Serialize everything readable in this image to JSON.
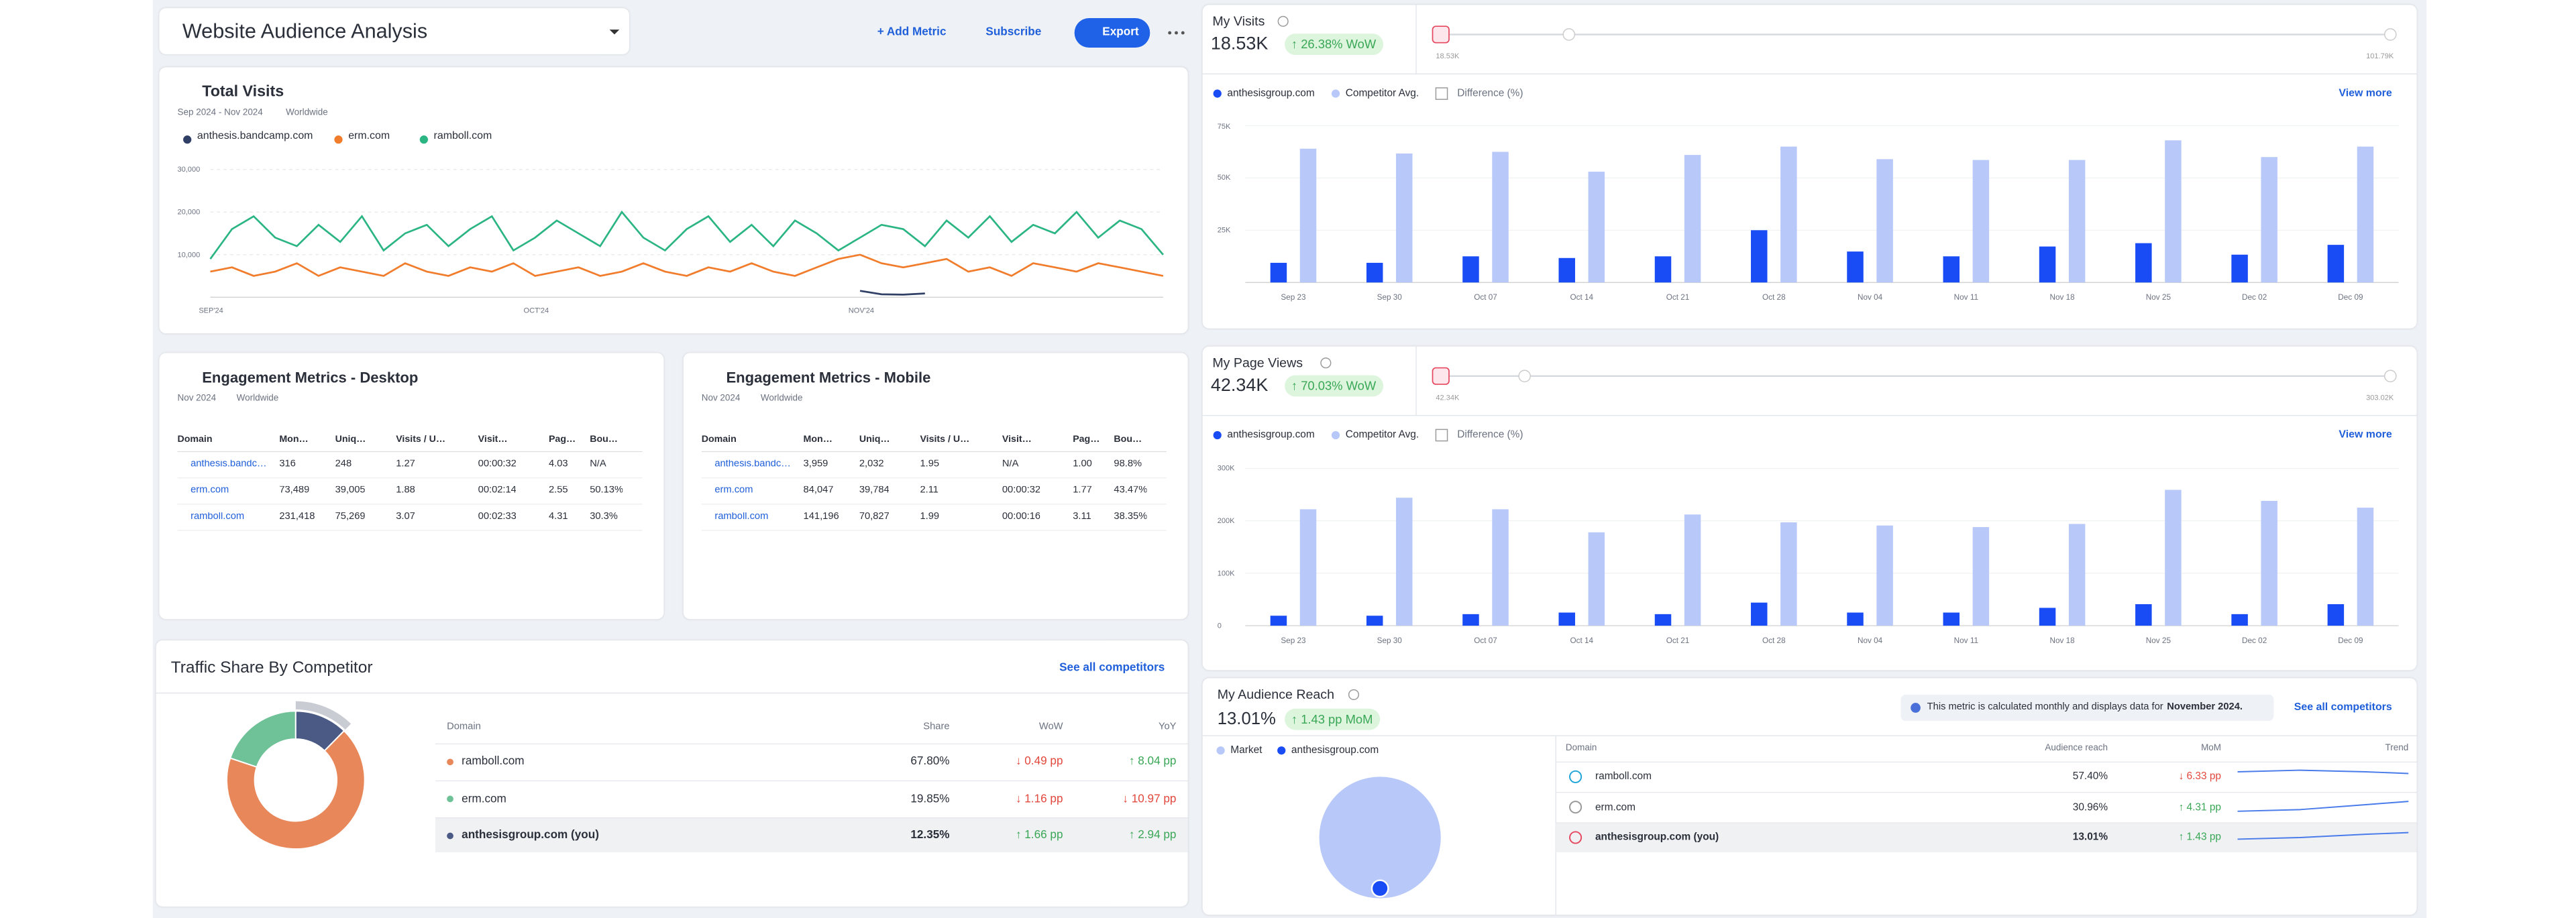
{
  "header": {
    "title": "Website Audience Analysis",
    "add_metric": "+ Add Metric",
    "subscribe": "Subscribe",
    "export": "Export"
  },
  "total_visits": {
    "title": "Total Visits",
    "period": "Sep 2024 - Nov 2024",
    "region": "Worldwide",
    "chart_data": {
      "type": "line",
      "categories": [
        "SEP'24",
        null,
        null,
        null,
        null,
        null,
        null,
        null,
        null,
        null,
        null,
        null,
        null,
        null,
        null,
        "OCT'24",
        null,
        null,
        null,
        null,
        null,
        null,
        null,
        null,
        null,
        null,
        null,
        null,
        null,
        null,
        "NOV'24",
        null,
        null,
        null,
        null,
        null,
        null,
        null,
        null,
        null,
        null,
        null,
        null,
        null,
        null
      ],
      "series": [
        {
          "name": "anthesis.bandcamp.com",
          "color": "#2f3f66",
          "values": [
            null,
            null,
            null,
            null,
            null,
            null,
            null,
            null,
            null,
            null,
            null,
            null,
            null,
            null,
            null,
            null,
            null,
            null,
            null,
            null,
            null,
            null,
            null,
            null,
            null,
            null,
            null,
            null,
            null,
            null,
            1500,
            700,
            600,
            900,
            null,
            null,
            null,
            null,
            null,
            null,
            null,
            null,
            null,
            null,
            null
          ]
        },
        {
          "name": "erm.com",
          "color": "#f07c2c",
          "values": [
            6000,
            7000,
            5000,
            6000,
            8000,
            5000,
            7000,
            6000,
            5000,
            8000,
            6000,
            5000,
            7000,
            6000,
            8000,
            5000,
            6000,
            7000,
            5000,
            6000,
            8000,
            6000,
            5000,
            7000,
            6000,
            8000,
            6000,
            5000,
            7000,
            9000,
            10000,
            8000,
            7000,
            8000,
            9000,
            6000,
            7000,
            5000,
            8000,
            7000,
            6000,
            8000,
            7000,
            6000,
            5000
          ]
        },
        {
          "name": "ramboll.com",
          "color": "#2bb583",
          "values": [
            9000,
            16000,
            19000,
            14000,
            12000,
            17000,
            13000,
            19000,
            11000,
            15000,
            17000,
            12000,
            16000,
            19000,
            11000,
            14000,
            18000,
            15000,
            12000,
            20000,
            14000,
            11000,
            16000,
            19000,
            13000,
            17000,
            12000,
            18000,
            15000,
            11000,
            14000,
            17000,
            16000,
            12000,
            18000,
            14000,
            19000,
            13000,
            17000,
            15000,
            20000,
            14000,
            18000,
            16000,
            10000
          ]
        }
      ],
      "ylim": [
        0,
        32000
      ],
      "yticks": [
        {
          "value": 10000,
          "label": "10,000"
        },
        {
          "value": 20000,
          "label": "20,000"
        },
        {
          "value": 30000,
          "label": "30,000"
        }
      ],
      "grid": true
    }
  },
  "engagement_desktop": {
    "title": "Engagement Metrics - Desktop",
    "period": "Nov 2024",
    "region": "Worldwide",
    "columns": [
      "Domain",
      "Mon…",
      "Uniq…",
      "Visits / U…",
      "Visit…",
      "Pag…",
      "Bou…"
    ],
    "rows": [
      [
        "anthesis.bandc…",
        "316",
        "248",
        "1.27",
        "00:00:32",
        "4.03",
        "N/A"
      ],
      [
        "erm.com",
        "73,489",
        "39,005",
        "1.88",
        "00:02:14",
        "2.55",
        "50.13%"
      ],
      [
        "ramboll.com",
        "231,418",
        "75,269",
        "3.07",
        "00:02:33",
        "4.31",
        "30.3%"
      ]
    ]
  },
  "engagement_mobile": {
    "title": "Engagement Metrics - Mobile",
    "period": "Nov 2024",
    "region": "Worldwide",
    "columns": [
      "Domain",
      "Mon…",
      "Uniq…",
      "Visits / U…",
      "Visit…",
      "Pag…",
      "Bou…"
    ],
    "rows": [
      [
        "anthesis.bandc…",
        "3,959",
        "2,032",
        "1.95",
        "N/A",
        "1.00",
        "98.8%"
      ],
      [
        "erm.com",
        "84,047",
        "39,784",
        "2.11",
        "00:00:32",
        "1.77",
        "43.47%"
      ],
      [
        "ramboll.com",
        "141,196",
        "70,827",
        "1.99",
        "00:00:16",
        "3.11",
        "38.35%"
      ]
    ]
  },
  "traffic_share": {
    "title": "Traffic Share By Competitor",
    "link": "See all competitors",
    "columns": [
      "Domain",
      "Share",
      "WoW",
      "YoY"
    ],
    "chart_data": {
      "type": "pie",
      "categories": [
        "ramboll.com",
        "erm.com",
        "anthesisgroup.com (you)"
      ],
      "values": [
        67.8,
        19.85,
        12.35
      ],
      "value_labels": [
        "67.80%",
        "19.85%",
        "12.35%"
      ],
      "colors": [
        "#e8875a",
        "#6fc197",
        "#4a5a85"
      ]
    },
    "wow": [
      "↓ 0.49 pp",
      "↓ 1.16 pp",
      "↑ 1.66 pp"
    ],
    "yoy": [
      "↑ 8.04 pp",
      "↓ 10.97 pp",
      "↑ 2.94 pp"
    ]
  },
  "my_visits": {
    "title": "My Visits",
    "value": "18.53K",
    "change": "↑ 26.38% WoW",
    "range_min": "18.53K",
    "range_max": "101.79K",
    "difference": "Difference (%)",
    "view_more": "View more",
    "chart_data": {
      "type": "bar",
      "categories": [
        "Sep 23",
        "Sep 30",
        "Oct 07",
        "Oct 14",
        "Oct 21",
        "Oct 28",
        "Nov 04",
        "Nov 11",
        "Nov 18",
        "Nov 25",
        "Dec 02",
        "Dec 09"
      ],
      "series": [
        {
          "name": "anthesisgroup.com",
          "color": "#1a4cf5",
          "values": [
            9400,
            9400,
            12500,
            11700,
            12500,
            25000,
            14800,
            12500,
            17200,
            18800,
            13300,
            18000
          ]
        },
        {
          "name": "Competitor Avg.",
          "color": "#b8c9f9",
          "values": [
            64000,
            61700,
            62500,
            53000,
            61000,
            65000,
            59000,
            58600,
            58600,
            68000,
            60000,
            65000
          ]
        }
      ],
      "ylim": [
        0,
        77000
      ],
      "yticks": [
        {
          "value": 25000,
          "label": "25K"
        },
        {
          "value": 50000,
          "label": "50K"
        },
        {
          "value": 75000,
          "label": "75K"
        }
      ]
    }
  },
  "my_page_views": {
    "title": "My Page Views",
    "value": "42.34K",
    "change": "↑ 70.03% WoW",
    "range_min": "42.34K",
    "range_max": "303.02K",
    "difference": "Difference (%)",
    "view_more": "View more",
    "chart_data": {
      "type": "bar",
      "categories": [
        "Sep 23",
        "Sep 30",
        "Oct 07",
        "Oct 14",
        "Oct 21",
        "Oct 28",
        "Nov 04",
        "Nov 11",
        "Nov 18",
        "Nov 25",
        "Dec 02",
        "Dec 09"
      ],
      "series": [
        {
          "name": "anthesisgroup.com",
          "color": "#1a4cf5",
          "values": [
            19000,
            19000,
            22000,
            25000,
            22000,
            44000,
            25000,
            25000,
            34000,
            41000,
            22000,
            41000
          ]
        },
        {
          "name": "Competitor Avg.",
          "color": "#b8c9f9",
          "values": [
            222000,
            244000,
            222000,
            178000,
            212000,
            197000,
            191000,
            188000,
            194000,
            259000,
            238000,
            225000
          ]
        }
      ],
      "ylim": [
        0,
        310000
      ],
      "yticks": [
        0,
        {
          "value": 100000,
          "label": "100K"
        },
        {
          "value": 200000,
          "label": "200K"
        },
        {
          "value": 300000,
          "label": "300K"
        }
      ]
    }
  },
  "audience_reach": {
    "title": "My Audience Reach",
    "value": "13.01%",
    "change": "↑ 1.43 pp MoM",
    "notice": "This metric is calculated monthly and displays data for",
    "notice_bold": "November 2024.",
    "link": "See all competitors",
    "legend": [
      "Market",
      "anthesisgroup.com"
    ],
    "columns": [
      "Domain",
      "Audience reach",
      "MoM",
      "Trend"
    ],
    "rows": [
      [
        "ramboll.com",
        "57.40%",
        "↓ 6.33 pp"
      ],
      [
        "erm.com",
        "30.96%",
        "↑ 4.31 pp"
      ],
      [
        "anthesisgroup.com (you)",
        "13.01%",
        "↑ 1.43 pp"
      ]
    ]
  }
}
